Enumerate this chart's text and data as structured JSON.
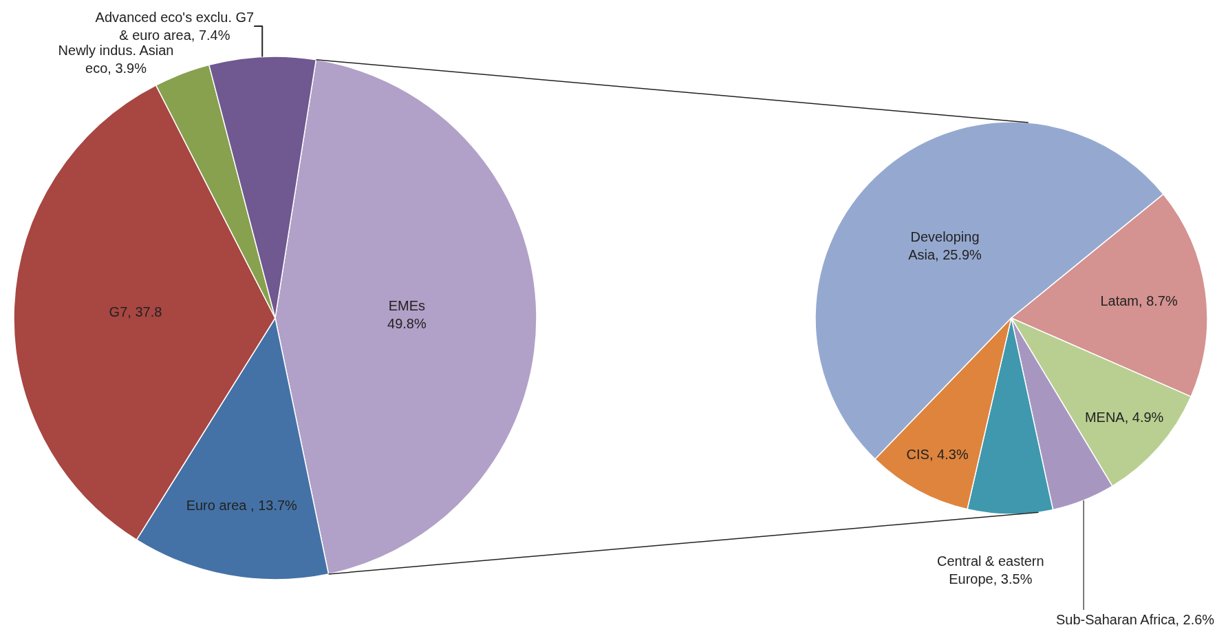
{
  "chart_data": [
    {
      "type": "pie",
      "categories": [
        "EMEs",
        "Euro area ",
        "G7",
        "Newly indus. Asian\neco",
        "Advanced eco's exclu. G7\n& euro area"
      ],
      "values": [
        49.8,
        13.7,
        37.8,
        3.9,
        7.4
      ],
      "value_labels": [
        "49.8%",
        "13.7%",
        "37.8",
        "3.9%",
        "7.4%"
      ],
      "colors": [
        "#b1a0c7",
        "#4472a6",
        "#a84642",
        "#87a14e",
        "#705890"
      ]
    },
    {
      "type": "pie",
      "categories": [
        "Developing\nAsia",
        "Latam",
        "MENA",
        "Sub-Saharan Africa",
        "Central & eastern\nEurope",
        "CIS"
      ],
      "values": [
        25.9,
        8.7,
        4.9,
        2.6,
        3.5,
        4.3
      ],
      "value_labels": [
        "25.9%",
        "8.7%",
        "4.9%",
        "2.6%",
        "3.5%",
        "4.3%"
      ],
      "colors": [
        "#95a9d0",
        "#d49290",
        "#b9cf91",
        "#a797c0",
        "#3f98ae",
        "#de843d"
      ]
    }
  ]
}
